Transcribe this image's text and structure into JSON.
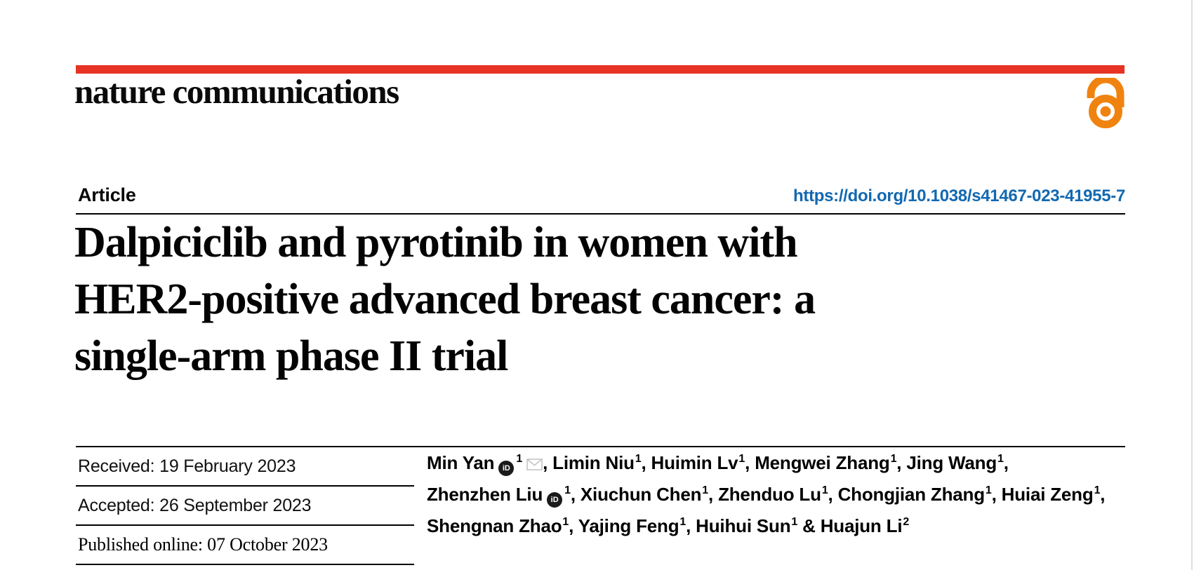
{
  "masthead": {
    "journal_name": "nature communications",
    "bar_color": "#e63323",
    "open_access_icon": "open-padlock",
    "open_access_color": "#f0830f"
  },
  "article_header": {
    "kicker": "Article",
    "doi_link": "https://doi.org/10.1038/s41467-023-41955-7",
    "link_color": "#1268b1",
    "title_lines": [
      "Dalpiciclib and pyrotinib in women with",
      "HER2-positive advanced breast cancer: a",
      "single-arm phase II trial"
    ]
  },
  "history": {
    "rows": [
      {
        "label": "Received:",
        "value": "19 February 2023",
        "serif": false
      },
      {
        "label": "Accepted:",
        "value": "26 September 2023",
        "serif": false
      },
      {
        "label": "Published online:",
        "value": "07 October 2023",
        "serif": true
      }
    ]
  },
  "authors": {
    "icons": {
      "orcid": "orcid-id-badge",
      "email": "envelope"
    },
    "lines": [
      [
        {
          "name": "Min Yan",
          "orcid": true,
          "sup": "1",
          "email": true,
          "sep": ", "
        },
        {
          "name": "Limin Niu",
          "sup": "1",
          "sep": ", "
        },
        {
          "name": "Huimin Lv",
          "sup": "1",
          "sep": ", "
        },
        {
          "name": "Mengwei Zhang",
          "sup": "1",
          "sep": ", "
        },
        {
          "name": "Jing Wang",
          "sup": "1",
          "sep": ","
        }
      ],
      [
        {
          "name": "Zhenzhen Liu",
          "orcid": true,
          "sup": "1",
          "sep": ", "
        },
        {
          "name": "Xiuchun Chen",
          "sup": "1",
          "sep": ", "
        },
        {
          "name": "Zhenduo Lu",
          "sup": "1",
          "sep": ", "
        },
        {
          "name": "Chongjian Zhang",
          "sup": "1",
          "sep": ", "
        },
        {
          "name": "Huiai Zeng",
          "sup": "1",
          "sep": ","
        }
      ],
      [
        {
          "name": "Shengnan Zhao",
          "sup": "1",
          "sep": ", "
        },
        {
          "name": "Yajing Feng",
          "sup": "1",
          "sep": ", "
        },
        {
          "name": "Huihui Sun",
          "sup": "1",
          "sep": " & "
        },
        {
          "name": "Huajun Li",
          "sup": "2",
          "sep": ""
        }
      ]
    ]
  }
}
